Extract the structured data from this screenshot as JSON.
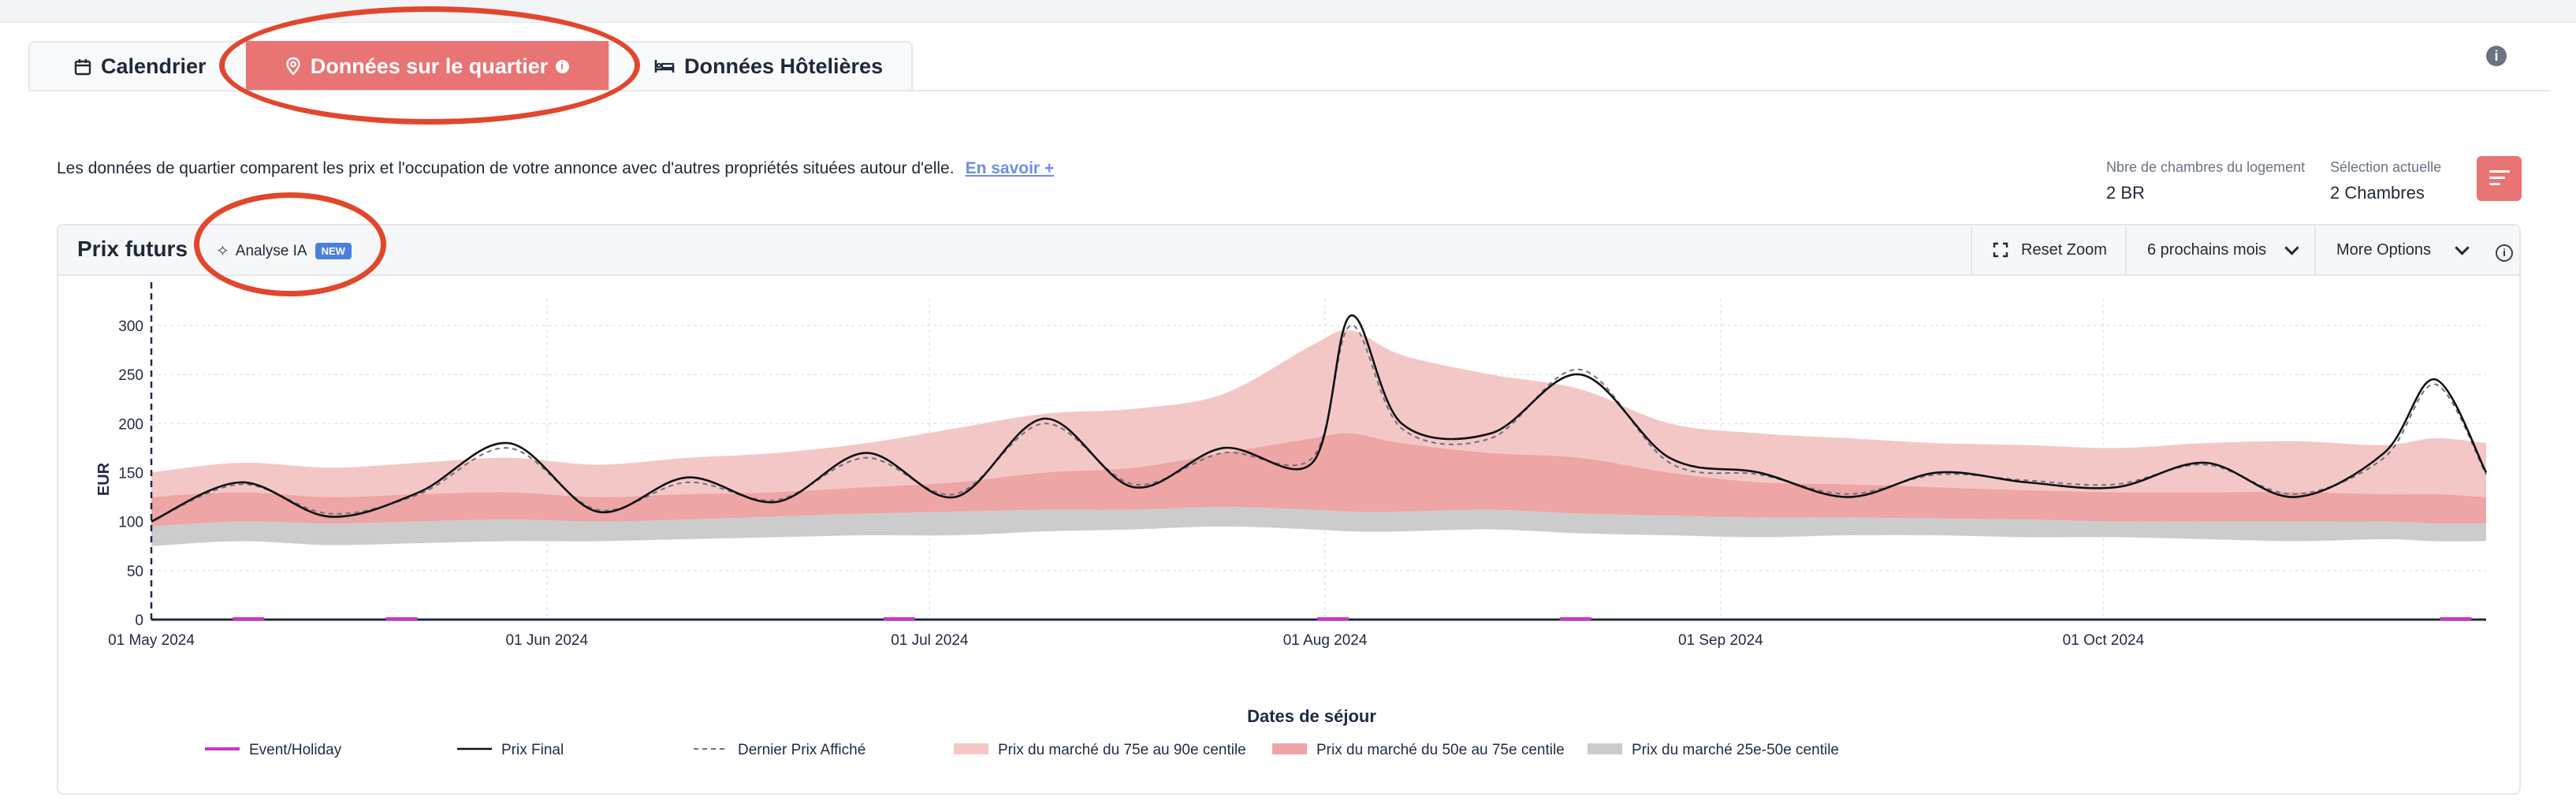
{
  "tabs": [
    {
      "label": "Calendrier",
      "icon": "calendar-icon"
    },
    {
      "label": "Données sur le quartier",
      "icon": "location-pin-icon"
    },
    {
      "label": "Données Hôtelières",
      "icon": "bed-icon"
    }
  ],
  "description": {
    "text": "Les données de quartier comparent les prix et l'occupation de votre annonce avec d'autres propriétés situées autour d'elle.",
    "link": "En savoir +"
  },
  "meta": {
    "bedrooms_label": "Nbre de chambres du logement",
    "bedrooms_value": "2 BR",
    "selection_label": "Sélection actuelle",
    "selection_value": "2 Chambres"
  },
  "panel": {
    "title": "Prix futurs",
    "ai_label": "Analyse IA",
    "ai_badge": "NEW",
    "reset_zoom": "Reset Zoom",
    "period": "6 prochains mois",
    "more_options": "More Options"
  },
  "colors": {
    "accent": "#e87474",
    "annotation": "#e2462d",
    "p75_90": "#f4c7c7",
    "p50_75": "#eea5a5",
    "p25_50": "#cccccc",
    "event": "#cc33cc"
  },
  "chart_data": {
    "type": "area",
    "xlabel": "Dates de séjour",
    "ylabel": "EUR",
    "ylim": [
      0,
      320
    ],
    "y_ticks": [
      0,
      50,
      100,
      150,
      200,
      250,
      300
    ],
    "x_ticks": [
      "01 May 2024",
      "01 Jun 2024",
      "01 Jul 2024",
      "01 Aug 2024",
      "01 Sep 2024",
      "01 Oct 2024"
    ],
    "x_range": [
      "2024-05-01",
      "2024-10-31"
    ],
    "grid": true,
    "legend_position": "bottom",
    "legend": [
      "Event/Holiday",
      "Prix Final",
      "Dernier Prix Affiché",
      "Prix du marché du 75e au 90e centile",
      "Prix du marché du 50e au 75e centile",
      "Prix du marché 25e-50e centile"
    ],
    "dates": [
      "2024-05-01",
      "2024-05-08",
      "2024-05-15",
      "2024-05-22",
      "2024-05-29",
      "2024-06-05",
      "2024-06-12",
      "2024-06-19",
      "2024-06-26",
      "2024-07-03",
      "2024-07-10",
      "2024-07-17",
      "2024-07-24",
      "2024-07-31",
      "2024-08-03",
      "2024-08-07",
      "2024-08-14",
      "2024-08-21",
      "2024-08-28",
      "2024-09-04",
      "2024-09-11",
      "2024-09-18",
      "2024-09-25",
      "2024-10-02",
      "2024-10-09",
      "2024-10-16",
      "2024-10-23",
      "2024-10-27",
      "2024-10-31"
    ],
    "series": [
      {
        "name": "Prix Final",
        "values": [
          100,
          140,
          105,
          130,
          180,
          110,
          145,
          120,
          170,
          125,
          205,
          135,
          175,
          160,
          310,
          200,
          190,
          250,
          165,
          150,
          125,
          150,
          140,
          135,
          160,
          125,
          170,
          245,
          150
        ]
      },
      {
        "name": "Dernier Prix Affiché",
        "values": [
          100,
          138,
          108,
          128,
          175,
          112,
          140,
          122,
          165,
          128,
          200,
          138,
          170,
          165,
          300,
          195,
          185,
          255,
          160,
          148,
          128,
          148,
          142,
          138,
          158,
          128,
          165,
          240,
          148
        ]
      },
      {
        "name": "Prix du marché 25e-50e centile",
        "low": [
          75,
          80,
          76,
          78,
          80,
          80,
          82,
          84,
          86,
          86,
          90,
          92,
          95,
          92,
          90,
          90,
          92,
          88,
          86,
          84,
          86,
          86,
          84,
          84,
          82,
          80,
          82,
          80,
          80
        ],
        "high": [
          95,
          100,
          98,
          100,
          102,
          100,
          102,
          105,
          108,
          110,
          112,
          112,
          115,
          112,
          110,
          110,
          112,
          108,
          106,
          104,
          104,
          103,
          102,
          100,
          100,
          100,
          100,
          98,
          98
        ]
      },
      {
        "name": "Prix du marché du 50e au 75e centile",
        "low": [
          95,
          100,
          98,
          100,
          102,
          100,
          102,
          105,
          108,
          110,
          112,
          112,
          115,
          112,
          110,
          110,
          112,
          108,
          106,
          104,
          104,
          103,
          102,
          100,
          100,
          100,
          100,
          98,
          98
        ],
        "high": [
          125,
          130,
          125,
          128,
          130,
          125,
          128,
          130,
          135,
          140,
          150,
          155,
          170,
          185,
          190,
          180,
          170,
          165,
          150,
          140,
          138,
          135,
          132,
          130,
          130,
          130,
          128,
          128,
          125
        ]
      },
      {
        "name": "Prix du marché du 75e au 90e centile",
        "low": [
          125,
          130,
          125,
          128,
          130,
          125,
          128,
          130,
          135,
          140,
          150,
          155,
          170,
          185,
          190,
          180,
          170,
          165,
          150,
          140,
          138,
          135,
          132,
          130,
          130,
          130,
          128,
          128,
          125
        ],
        "high": [
          150,
          160,
          155,
          160,
          165,
          158,
          165,
          170,
          180,
          195,
          210,
          215,
          230,
          280,
          295,
          270,
          250,
          235,
          200,
          190,
          185,
          180,
          178,
          175,
          180,
          182,
          178,
          185,
          180
        ]
      }
    ],
    "events": [
      "2024-05-08",
      "2024-05-20",
      "2024-06-28",
      "2024-08-01",
      "2024-08-20",
      "2024-10-28"
    ]
  }
}
